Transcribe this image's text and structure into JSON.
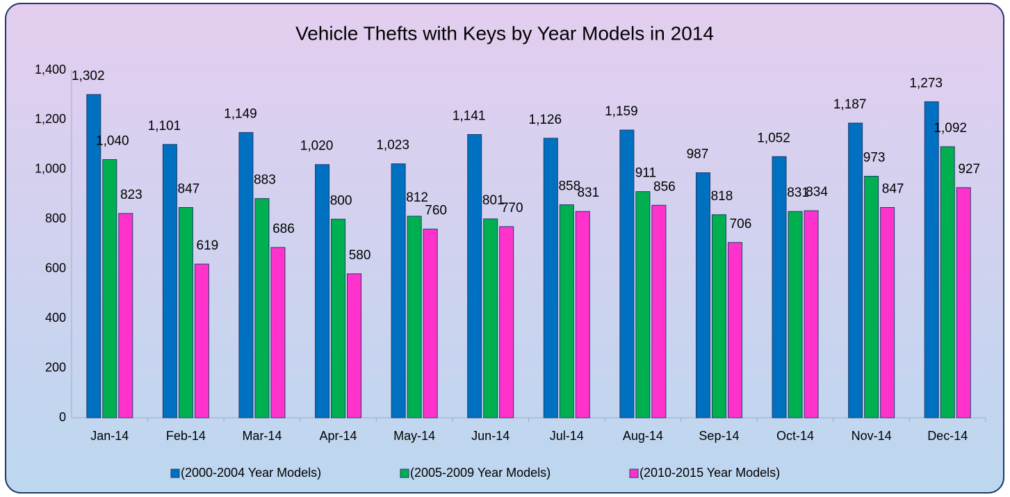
{
  "chart_data": {
    "type": "bar",
    "title": "Vehicle Thefts with Keys by Year Models in 2014",
    "categories": [
      "Jan-14",
      "Feb-14",
      "Mar-14",
      "Apr-14",
      "May-14",
      "Jun-14",
      "Jul-14",
      "Aug-14",
      "Sep-14",
      "Oct-14",
      "Nov-14",
      "Dec-14"
    ],
    "series": [
      {
        "name": "(2000-2004 Year Models)",
        "color": "#0070c0",
        "values": [
          1302,
          1101,
          1149,
          1020,
          1023,
          1141,
          1126,
          1159,
          987,
          1052,
          1187,
          1273
        ],
        "value_labels": [
          "1,302",
          "1,101",
          "1,149",
          "1,020",
          "1,023",
          "1,141",
          "1,126",
          "1,159",
          "987",
          "1,052",
          "1,187",
          "1,273"
        ]
      },
      {
        "name": "(2005-2009 Year Models)",
        "color": "#00b050",
        "values": [
          1040,
          847,
          883,
          800,
          812,
          801,
          858,
          911,
          818,
          831,
          973,
          1092
        ],
        "value_labels": [
          "1,040",
          "847",
          "883",
          "800",
          "812",
          "801",
          "858",
          "911",
          "818",
          "831",
          "973",
          "1,092"
        ]
      },
      {
        "name": "(2010-2015 Year Models)",
        "color": "#ff33cc",
        "values": [
          823,
          619,
          686,
          580,
          760,
          770,
          831,
          856,
          706,
          834,
          847,
          927
        ],
        "value_labels": [
          "823",
          "619",
          "686",
          "580",
          "760",
          "770",
          "831",
          "856",
          "706",
          "834",
          "847",
          "927"
        ]
      }
    ],
    "ylim": [
      0,
      1400
    ],
    "yticks": [
      0,
      200,
      400,
      600,
      800,
      {
        "value": 1000,
        "label": "1,000"
      },
      {
        "value": 1200,
        "label": "1,200"
      },
      {
        "value": 1400,
        "label": "1,400"
      }
    ],
    "grid": true,
    "legend": "bottom"
  }
}
